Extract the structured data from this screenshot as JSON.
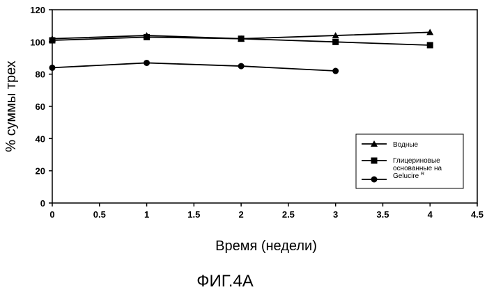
{
  "chart_data": {
    "type": "line",
    "title": "",
    "xlabel": "Время (недели)",
    "ylabel": "% суммы трех",
    "xlim": [
      0,
      4.5
    ],
    "ylim": [
      0,
      120
    ],
    "x_ticks": [
      "0",
      "0.5",
      "1",
      "1.5",
      "2",
      "2.5",
      "3",
      "3.5",
      "4",
      "4.5"
    ],
    "y_ticks": [
      "0",
      "20",
      "40",
      "60",
      "80",
      "100",
      "120"
    ],
    "grid": false,
    "legend_position": "bottom-right",
    "series": [
      {
        "name": "Водные",
        "marker": "triangle",
        "x": [
          0,
          1,
          2,
          3,
          4
        ],
        "y": [
          102,
          104,
          102,
          104,
          106
        ]
      },
      {
        "name_lines": [
          "Глицериновые",
          "основанные на",
          "Gelucire"
        ],
        "name_superscript": "R",
        "marker": "square",
        "x": [
          0,
          1,
          2,
          3,
          4
        ],
        "y": [
          101,
          103,
          102,
          100,
          98
        ]
      },
      {
        "name": "",
        "marker": "circle",
        "x": [
          0,
          1,
          2,
          3
        ],
        "y": [
          84,
          87,
          85,
          82
        ]
      }
    ]
  },
  "caption": "ФИГ.4А"
}
